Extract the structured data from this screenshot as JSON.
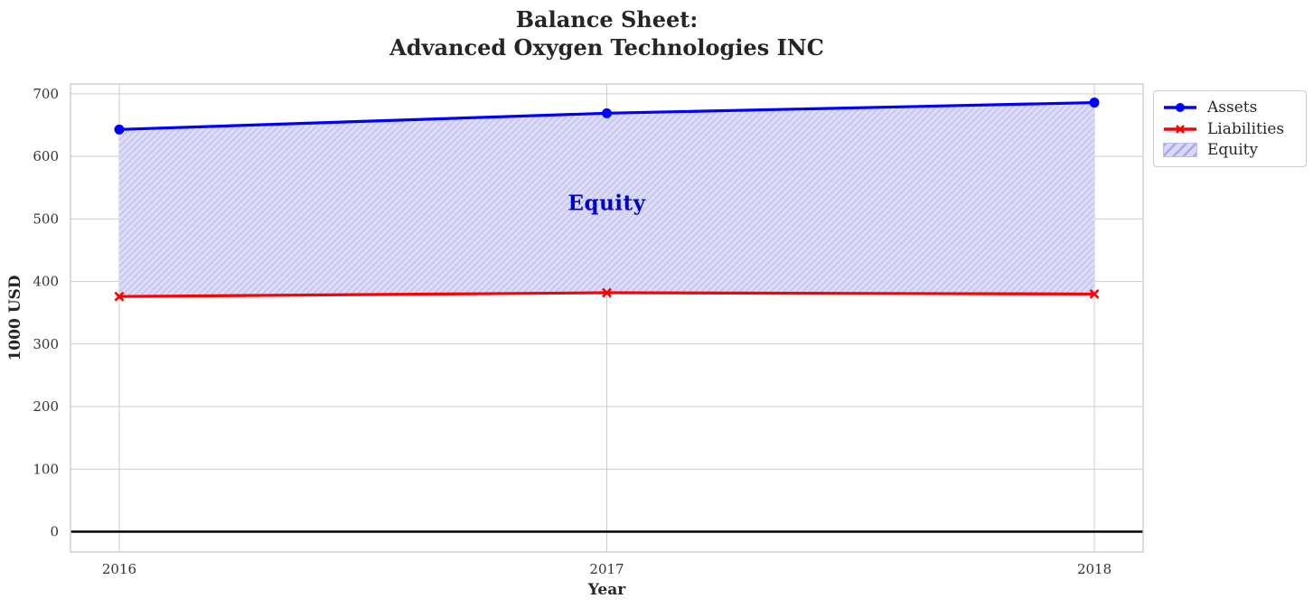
{
  "chart_data": {
    "type": "line",
    "title": "Balance Sheet:\nAdvanced Oxygen Technologies INC",
    "xlabel": "Year",
    "ylabel": "1000 USD",
    "categories": [
      "2016",
      "2017",
      "2018"
    ],
    "x": [
      2016,
      2017,
      2018
    ],
    "series": [
      {
        "name": "Assets",
        "color": "#0000ff",
        "marker": "circle",
        "values": [
          643,
          669,
          686
        ]
      },
      {
        "name": "Liabilities",
        "color": "#ff0000",
        "marker": "x",
        "values": [
          376,
          382,
          380
        ]
      }
    ],
    "area": {
      "name": "Equity",
      "between": [
        "Assets",
        "Liabilities"
      ],
      "values": [
        267,
        287,
        306
      ],
      "face_color": "#dedef8",
      "hatch_color": "#c9c9f2",
      "hatch": "/",
      "label": {
        "text": "Equity",
        "color": "#0000cc",
        "x": 2017,
        "y": 525
      }
    },
    "yticks": [
      0,
      100,
      200,
      300,
      400,
      500,
      600,
      700
    ],
    "ylim": [
      -32.5,
      715.7
    ],
    "xlim": [
      2015.9,
      2018.1
    ],
    "grid": true,
    "grid_color": "#cccccc",
    "spine_color": "#cccccc",
    "tick_label_color": "#333333",
    "zero_line_color": "#000000",
    "legend": {
      "position": "outside-upper-right",
      "entries": [
        "Assets",
        "Liabilities",
        "Equity"
      ],
      "patch_colors": {
        "face": "#d9d9f6",
        "hatch": "#a8a8ec",
        "border": "#bdbde8"
      }
    }
  }
}
